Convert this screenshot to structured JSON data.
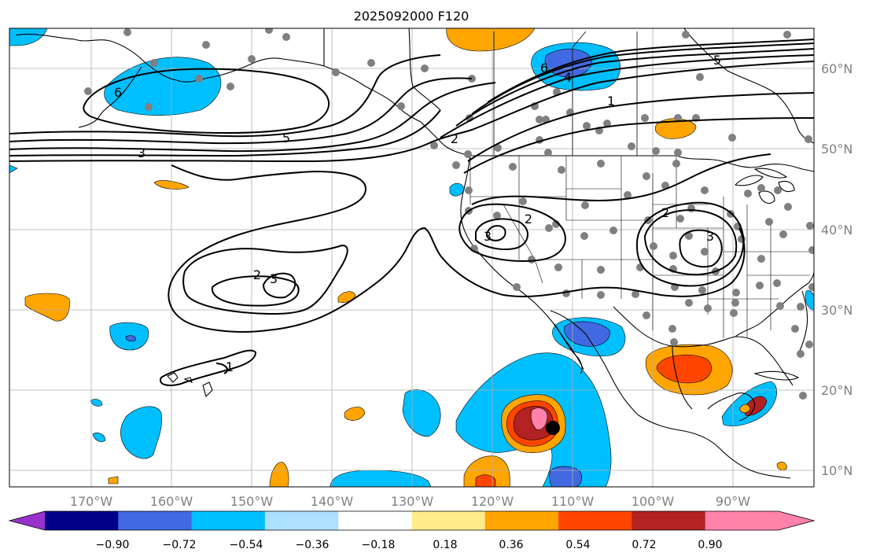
{
  "title": "2025092000 F120",
  "map": {
    "lon_labels": [
      "170°W",
      "160°W",
      "150°W",
      "140°W",
      "130°W",
      "120°W",
      "110°W",
      "100°W",
      "90°W"
    ],
    "lat_labels": [
      "60°N",
      "50°N",
      "40°N",
      "30°N",
      "20°N",
      "10°N"
    ],
    "contour_labels": [
      "6",
      "5",
      "3",
      "6",
      "4",
      "5",
      "1",
      "2",
      "2",
      "3",
      "3",
      "2",
      "3",
      "2",
      "1"
    ],
    "marker": "storm-center-dot"
  },
  "colorbar": {
    "ticks": [
      "−0.90",
      "−0.72",
      "−0.54",
      "−0.36",
      "−0.18",
      "0.18",
      "0.36",
      "0.54",
      "0.72",
      "0.90"
    ],
    "colors": [
      "#9932CC",
      "#00008B",
      "#4169E1",
      "#00BFFF",
      "#ADE0FF",
      "#FFFFFF",
      "#FFEC8B",
      "#FFA500",
      "#FF4500",
      "#B22222",
      "#FF82AB",
      "#FF82AB"
    ]
  }
}
